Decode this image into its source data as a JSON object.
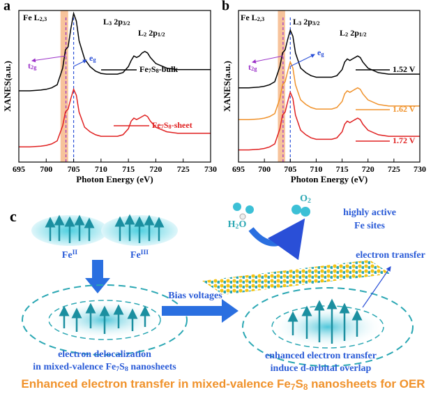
{
  "chart_data": [
    {
      "type": "line",
      "panel_label": "a",
      "xlabel": "Photon Energy (eV)",
      "ylabel": "XANES(a.u.)",
      "xlim": [
        695,
        730
      ],
      "xticks": [
        695,
        700,
        705,
        710,
        715,
        720,
        725,
        730
      ],
      "ylim": [
        0,
        10
      ],
      "shaded_region": [
        702.6,
        704.0
      ],
      "reference_lines": [
        {
          "x": 703.6,
          "color": "#9a2fc8"
        },
        {
          "x": 705,
          "color": "#2a4fd7"
        }
      ],
      "annotations": [
        "Fe L2,3",
        "L3 2p3/2",
        "L2 2p1/2",
        "t2g",
        "eg"
      ],
      "x": [
        695,
        697,
        699,
        700,
        701,
        702,
        703,
        703.5,
        704,
        704.5,
        705,
        705.5,
        706,
        707,
        708,
        709,
        710,
        711,
        712,
        713,
        714,
        715,
        715.5,
        716,
        716.5,
        717,
        717.5,
        718,
        718.5,
        719,
        720,
        722,
        724,
        726,
        728,
        730
      ],
      "series": [
        {
          "name": "Fe7S8-bulk",
          "color": "#000000",
          "values": [
            4.7,
            4.7,
            4.75,
            4.8,
            4.9,
            5.1,
            6.2,
            7.4,
            7.6,
            8.8,
            9.8,
            9.3,
            8.0,
            6.8,
            6.3,
            6.0,
            5.85,
            5.8,
            5.8,
            5.8,
            5.9,
            6.3,
            6.7,
            7.0,
            6.9,
            7.0,
            7.2,
            7.3,
            7.2,
            6.9,
            6.5,
            6.2,
            6.1,
            6.1,
            6.1,
            6.1
          ]
        },
        {
          "name": "Fe7S8-sheet",
          "color": "#e02020",
          "values": [
            1.0,
            1.0,
            1.05,
            1.1,
            1.2,
            1.4,
            2.4,
            3.3,
            3.5,
            4.2,
            4.8,
            4.4,
            3.3,
            2.3,
            2.0,
            1.8,
            1.7,
            1.7,
            1.7,
            1.7,
            1.8,
            2.2,
            2.7,
            2.9,
            2.8,
            2.9,
            3.0,
            3.1,
            3.0,
            2.7,
            2.3,
            2.0,
            1.9,
            1.9,
            1.9,
            1.9
          ]
        }
      ]
    },
    {
      "type": "line",
      "panel_label": "b",
      "xlabel": "Photon Energy (eV)",
      "ylabel": "XANES(a.u.)",
      "xlim": [
        695,
        730
      ],
      "xticks": [
        695,
        700,
        705,
        710,
        715,
        720,
        725,
        730
      ],
      "ylim": [
        0,
        10
      ],
      "shaded_region": [
        702.6,
        704.0
      ],
      "reference_lines": [
        {
          "x": 703.6,
          "color": "#9a2fc8"
        },
        {
          "x": 705,
          "color": "#2a4fd7"
        }
      ],
      "annotations": [
        "Fe L2,3",
        "L3 2p3/2",
        "L2 2p1/2",
        "t2g",
        "eg"
      ],
      "x": [
        695,
        697,
        699,
        700,
        701,
        702,
        703,
        703.5,
        704,
        704.5,
        705,
        705.5,
        706,
        707,
        708,
        709,
        710,
        711,
        712,
        713,
        714,
        715,
        715.5,
        716,
        716.5,
        717,
        717.5,
        718,
        718.5,
        719,
        720,
        722,
        724,
        726,
        728,
        730
      ],
      "series": [
        {
          "name": "1.52 V",
          "color": "#000000",
          "values": [
            4.9,
            4.9,
            4.95,
            5.0,
            5.1,
            5.3,
            6.3,
            7.2,
            7.4,
            8.1,
            8.7,
            8.3,
            7.2,
            6.2,
            5.9,
            5.7,
            5.6,
            5.6,
            5.6,
            5.6,
            5.7,
            6.1,
            6.6,
            6.8,
            6.7,
            6.8,
            6.9,
            7.0,
            6.9,
            6.6,
            6.2,
            5.9,
            5.8,
            5.8,
            5.8,
            5.8
          ]
        },
        {
          "name": "1.62 V",
          "color": "#f0922b",
          "values": [
            2.8,
            2.8,
            2.85,
            2.9,
            3.0,
            3.2,
            4.2,
            5.1,
            5.3,
            6.0,
            6.6,
            6.2,
            5.1,
            4.1,
            3.8,
            3.6,
            3.5,
            3.5,
            3.5,
            3.5,
            3.6,
            4.0,
            4.5,
            4.7,
            4.6,
            4.7,
            4.8,
            4.9,
            4.8,
            4.5,
            4.1,
            3.8,
            3.7,
            3.7,
            3.7,
            3.7
          ]
        },
        {
          "name": "1.72 V",
          "color": "#e02020",
          "values": [
            0.8,
            0.8,
            0.85,
            0.9,
            1.0,
            1.2,
            2.2,
            3.1,
            3.3,
            4.0,
            4.6,
            4.2,
            3.1,
            2.1,
            1.8,
            1.6,
            1.5,
            1.5,
            1.5,
            1.5,
            1.6,
            2.0,
            2.5,
            2.7,
            2.6,
            2.7,
            2.8,
            2.9,
            2.8,
            2.5,
            2.1,
            1.8,
            1.7,
            1.7,
            1.7,
            1.7
          ]
        }
      ]
    }
  ],
  "diagram": {
    "panel_label": "c",
    "fe_ii": "FeII",
    "fe_iii": "FeIII",
    "bias": "Bias voltages",
    "h2o": "H2O",
    "o2": "O2",
    "active_sites": [
      "highly active",
      "Fe sites"
    ],
    "electron_transfer": "electron transfer",
    "left_caption": [
      "electron delocalization",
      "in mixed-valence Fe7S8 nanosheets"
    ],
    "right_caption": [
      "enhanced electron transfer",
      "induce d-orbital overlap"
    ],
    "title": "Enhanced electron transfer in mixed-valence Fe7S8 nanosheets for OER"
  }
}
